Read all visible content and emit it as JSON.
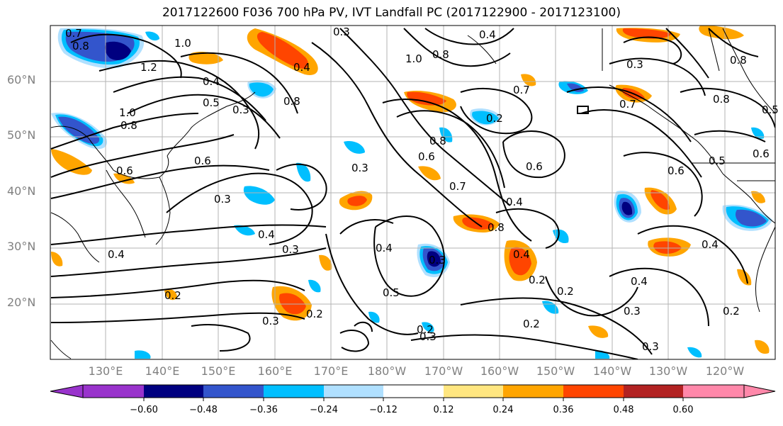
{
  "title": "2017122600 F036 700 hPa PV, IVT Landfall PC (2017122900 - 2017123100)",
  "map": {
    "lat_labels": [
      "60°N",
      "50°N",
      "40°N",
      "30°N",
      "20°N"
    ],
    "lon_labels": [
      "130°E",
      "140°E",
      "150°E",
      "160°E",
      "170°E",
      "180°W",
      "170°W",
      "160°W",
      "150°W",
      "140°W",
      "130°W",
      "120°W"
    ],
    "contour_labels": [
      "0.7",
      "0.8",
      "1.2",
      "1.0",
      "0.4",
      "0.5",
      "0.3",
      "0.8",
      "0.6",
      "1.0",
      "0.8",
      "0.6",
      "0.3",
      "0.4",
      "0.3",
      "0.4",
      "0.2",
      "0.3",
      "0.2",
      "0.3",
      "0.4",
      "0.5",
      "0.6",
      "0.7",
      "0.8",
      "0.4",
      "0.2",
      "0.2",
      "0.3",
      "0.3",
      "0.4",
      "0.6",
      "0.7",
      "0.8",
      "0.6",
      "0.5",
      "0.4",
      "0.2",
      "0.3",
      "1.0",
      "0.8",
      "0.2",
      "0.8",
      "0.7",
      "0.8",
      "0.6",
      "0.5",
      "0.4",
      "0.3",
      "0.3",
      "0.4",
      "0.2",
      "0.3",
      "0.2",
      "0.4"
    ]
  },
  "colorbar": {
    "ticks": [
      "−0.60",
      "−0.48",
      "−0.36",
      "−0.24",
      "−0.12",
      "0.12",
      "0.24",
      "0.36",
      "0.48",
      "0.60"
    ],
    "colors": [
      "#9933cc",
      "#000080",
      "#3355cc",
      "#00bfff",
      "#b0e0ff",
      "#ffffff",
      "#ffe680",
      "#ffa500",
      "#ff4500",
      "#b22222",
      "#ff88aa"
    ]
  }
}
